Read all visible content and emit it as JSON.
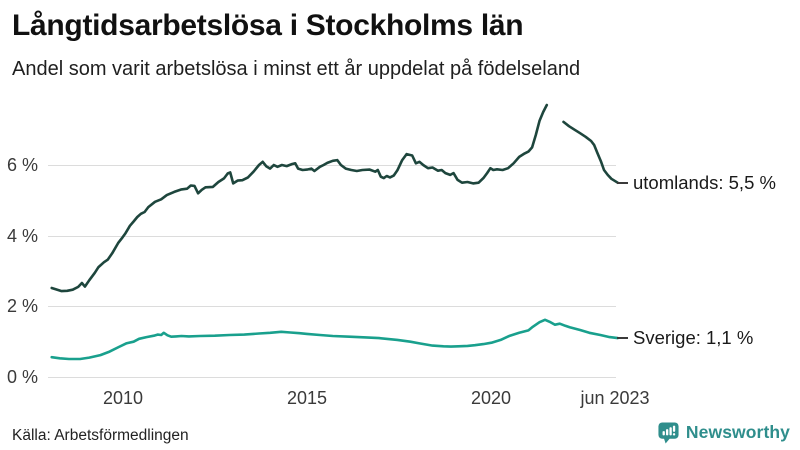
{
  "chart_data": {
    "type": "line",
    "title": "Långtidsarbetslösa i Stockholms län",
    "subtitle": "Andel som varit arbetslösa i minst ett år uppdelat på födelseland",
    "source": "Källa: Arbetsförmedlingen",
    "unit": "%",
    "grid": "horizontal",
    "legend": "end-of-line-labels",
    "x_range": [
      2008.0,
      2023.6
    ],
    "y_range": [
      0,
      7.8
    ],
    "x_ticks": [
      {
        "label": "2010",
        "year": 2010
      },
      {
        "label": "2015",
        "year": 2015
      },
      {
        "label": "2020",
        "year": 2020
      },
      {
        "label": "jun 2023",
        "year": 2023.42
      }
    ],
    "y_ticks": [
      {
        "label": "0 %",
        "value": 0
      },
      {
        "label": "2 %",
        "value": 2
      },
      {
        "label": "4 %",
        "value": 4
      },
      {
        "label": "6 %",
        "value": 6
      }
    ],
    "series": [
      {
        "name": "utomlands",
        "end_label": "utomlands: 5,5 %",
        "last_value": "5,5 %",
        "color": "#1e463d",
        "segments": [
          [
            [
              2008.08,
              2.52
            ],
            [
              2008.2,
              2.48
            ],
            [
              2008.35,
              2.43
            ],
            [
              2008.5,
              2.44
            ],
            [
              2008.65,
              2.47
            ],
            [
              2008.8,
              2.55
            ],
            [
              2008.9,
              2.66
            ],
            [
              2008.98,
              2.56
            ],
            [
              2009.1,
              2.74
            ],
            [
              2009.25,
              2.95
            ],
            [
              2009.35,
              3.11
            ],
            [
              2009.5,
              3.25
            ],
            [
              2009.6,
              3.32
            ],
            [
              2009.72,
              3.5
            ],
            [
              2009.88,
              3.79
            ],
            [
              2010.0,
              3.95
            ],
            [
              2010.08,
              4.07
            ],
            [
              2010.2,
              4.28
            ],
            [
              2010.3,
              4.4
            ],
            [
              2010.4,
              4.53
            ],
            [
              2010.5,
              4.62
            ],
            [
              2010.6,
              4.67
            ],
            [
              2010.7,
              4.81
            ],
            [
              2010.88,
              4.96
            ],
            [
              2011.05,
              5.03
            ],
            [
              2011.2,
              5.15
            ],
            [
              2011.4,
              5.24
            ],
            [
              2011.6,
              5.31
            ],
            [
              2011.75,
              5.33
            ],
            [
              2011.85,
              5.42
            ],
            [
              2011.95,
              5.41
            ],
            [
              2012.05,
              5.2
            ],
            [
              2012.15,
              5.3
            ],
            [
              2012.25,
              5.37
            ],
            [
              2012.45,
              5.38
            ],
            [
              2012.6,
              5.52
            ],
            [
              2012.75,
              5.62
            ],
            [
              2012.85,
              5.76
            ],
            [
              2012.92,
              5.79
            ],
            [
              2013.0,
              5.48
            ],
            [
              2013.12,
              5.56
            ],
            [
              2013.25,
              5.57
            ],
            [
              2013.4,
              5.65
            ],
            [
              2013.55,
              5.81
            ],
            [
              2013.7,
              6.0
            ],
            [
              2013.8,
              6.09
            ],
            [
              2013.9,
              5.96
            ],
            [
              2014.0,
              5.9
            ],
            [
              2014.1,
              6.0
            ],
            [
              2014.2,
              5.95
            ],
            [
              2014.32,
              6.0
            ],
            [
              2014.45,
              5.97
            ],
            [
              2014.6,
              6.03
            ],
            [
              2014.68,
              6.05
            ],
            [
              2014.76,
              5.9
            ],
            [
              2014.88,
              5.86
            ],
            [
              2015.0,
              5.87
            ],
            [
              2015.12,
              5.9
            ],
            [
              2015.2,
              5.83
            ],
            [
              2015.35,
              5.95
            ],
            [
              2015.45,
              6.0
            ],
            [
              2015.55,
              6.06
            ],
            [
              2015.7,
              6.12
            ],
            [
              2015.82,
              6.14
            ],
            [
              2015.92,
              6.0
            ],
            [
              2016.05,
              5.9
            ],
            [
              2016.2,
              5.86
            ],
            [
              2016.35,
              5.83
            ],
            [
              2016.5,
              5.86
            ],
            [
              2016.7,
              5.87
            ],
            [
              2016.85,
              5.81
            ],
            [
              2016.92,
              5.86
            ],
            [
              2017.0,
              5.67
            ],
            [
              2017.08,
              5.63
            ],
            [
              2017.16,
              5.69
            ],
            [
              2017.25,
              5.65
            ],
            [
              2017.35,
              5.7
            ],
            [
              2017.45,
              5.85
            ],
            [
              2017.58,
              6.14
            ],
            [
              2017.7,
              6.31
            ],
            [
              2017.85,
              6.27
            ],
            [
              2017.95,
              6.05
            ],
            [
              2018.05,
              6.09
            ],
            [
              2018.15,
              6.0
            ],
            [
              2018.28,
              5.91
            ],
            [
              2018.4,
              5.93
            ],
            [
              2018.55,
              5.84
            ],
            [
              2018.65,
              5.86
            ],
            [
              2018.75,
              5.77
            ],
            [
              2018.88,
              5.72
            ],
            [
              2018.97,
              5.77
            ],
            [
              2019.08,
              5.58
            ],
            [
              2019.2,
              5.5
            ],
            [
              2019.35,
              5.52
            ],
            [
              2019.5,
              5.48
            ],
            [
              2019.65,
              5.5
            ],
            [
              2019.78,
              5.63
            ],
            [
              2019.88,
              5.77
            ],
            [
              2019.97,
              5.91
            ],
            [
              2020.05,
              5.86
            ],
            [
              2020.15,
              5.88
            ],
            [
              2020.3,
              5.86
            ],
            [
              2020.45,
              5.91
            ],
            [
              2020.6,
              6.05
            ],
            [
              2020.75,
              6.23
            ],
            [
              2020.9,
              6.33
            ],
            [
              2021.0,
              6.38
            ],
            [
              2021.1,
              6.5
            ],
            [
              2021.2,
              6.85
            ],
            [
              2021.3,
              7.25
            ],
            [
              2021.4,
              7.5
            ],
            [
              2021.5,
              7.7
            ]
          ],
          [
            [
              2021.95,
              7.22
            ],
            [
              2022.1,
              7.1
            ],
            [
              2022.25,
              7.0
            ],
            [
              2022.4,
              6.9
            ],
            [
              2022.55,
              6.8
            ],
            [
              2022.7,
              6.68
            ],
            [
              2022.78,
              6.57
            ],
            [
              2022.87,
              6.34
            ],
            [
              2022.97,
              6.09
            ],
            [
              2023.05,
              5.86
            ],
            [
              2023.15,
              5.72
            ],
            [
              2023.25,
              5.61
            ],
            [
              2023.42,
              5.5
            ]
          ]
        ]
      },
      {
        "name": "Sverige",
        "end_label": "Sverige: 1,1 %",
        "last_value": "1,1 %",
        "color": "#19a08d",
        "segments": [
          [
            [
              2008.08,
              0.56
            ],
            [
              2008.3,
              0.53
            ],
            [
              2008.55,
              0.51
            ],
            [
              2008.85,
              0.51
            ],
            [
              2009.1,
              0.55
            ],
            [
              2009.4,
              0.62
            ],
            [
              2009.65,
              0.72
            ],
            [
              2009.9,
              0.85
            ],
            [
              2010.1,
              0.95
            ],
            [
              2010.3,
              1.0
            ],
            [
              2010.45,
              1.08
            ],
            [
              2010.65,
              1.13
            ],
            [
              2010.85,
              1.17
            ],
            [
              2010.95,
              1.2
            ],
            [
              2011.05,
              1.19
            ],
            [
              2011.12,
              1.25
            ],
            [
              2011.22,
              1.18
            ],
            [
              2011.32,
              1.14
            ],
            [
              2011.45,
              1.15
            ],
            [
              2011.6,
              1.16
            ],
            [
              2011.8,
              1.15
            ],
            [
              2012.1,
              1.16
            ],
            [
              2012.5,
              1.17
            ],
            [
              2012.9,
              1.19
            ],
            [
              2013.3,
              1.2
            ],
            [
              2013.7,
              1.23
            ],
            [
              2014.0,
              1.25
            ],
            [
              2014.3,
              1.28
            ],
            [
              2014.55,
              1.26
            ],
            [
              2014.8,
              1.24
            ],
            [
              2015.0,
              1.22
            ],
            [
              2015.35,
              1.19
            ],
            [
              2015.7,
              1.16
            ],
            [
              2016.15,
              1.14
            ],
            [
              2016.6,
              1.12
            ],
            [
              2016.95,
              1.1
            ],
            [
              2017.45,
              1.05
            ],
            [
              2017.8,
              1.0
            ],
            [
              2018.05,
              0.95
            ],
            [
              2018.4,
              0.89
            ],
            [
              2018.7,
              0.87
            ],
            [
              2018.9,
              0.86
            ],
            [
              2019.1,
              0.87
            ],
            [
              2019.35,
              0.88
            ],
            [
              2019.55,
              0.9
            ],
            [
              2019.78,
              0.93
            ],
            [
              2020.0,
              0.97
            ],
            [
              2020.25,
              1.05
            ],
            [
              2020.5,
              1.17
            ],
            [
              2020.75,
              1.25
            ],
            [
              2021.0,
              1.32
            ],
            [
              2021.12,
              1.42
            ],
            [
              2021.3,
              1.55
            ],
            [
              2021.45,
              1.62
            ],
            [
              2021.6,
              1.55
            ],
            [
              2021.72,
              1.48
            ],
            [
              2021.85,
              1.51
            ],
            [
              2022.0,
              1.45
            ],
            [
              2022.12,
              1.41
            ],
            [
              2022.4,
              1.33
            ],
            [
              2022.65,
              1.25
            ],
            [
              2022.95,
              1.19
            ],
            [
              2023.2,
              1.13
            ],
            [
              2023.42,
              1.1
            ]
          ]
        ]
      }
    ]
  },
  "branding": {
    "name": "Newsworthy",
    "icon": "newsworthy-speech-bubble-chart-icon",
    "color": "#2f8e8c"
  }
}
